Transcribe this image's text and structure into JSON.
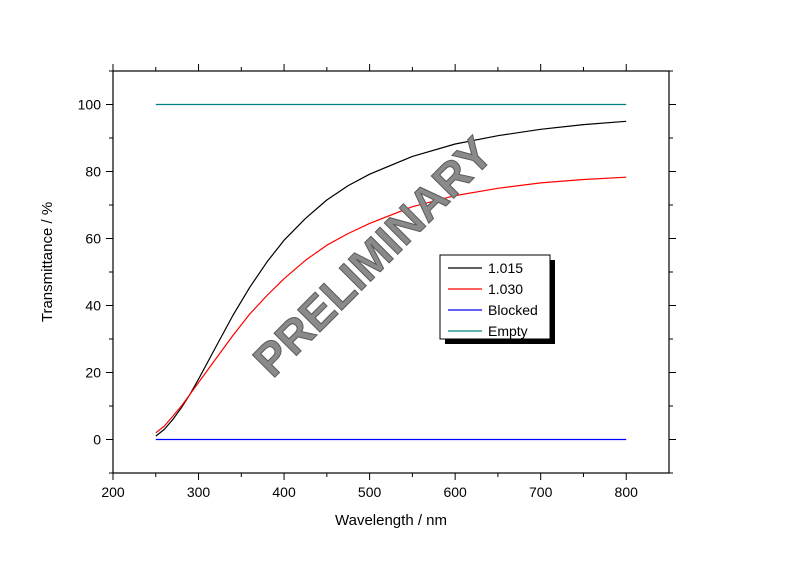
{
  "chart_data": {
    "type": "line",
    "title": "",
    "xlabel": "Wavelength / nm",
    "ylabel": "Transmittance / %",
    "xlim": [
      200,
      850
    ],
    "ylim": [
      -10,
      110
    ],
    "xticks": [
      200,
      300,
      400,
      500,
      600,
      700,
      800
    ],
    "yticks": [
      0,
      20,
      40,
      60,
      80,
      100
    ],
    "grid": false,
    "legend_position": "center-right",
    "watermark": "PRELIMINARY",
    "series": [
      {
        "name": "1.015",
        "color": "#000000",
        "x": [
          250,
          260,
          270,
          280,
          290,
          300,
          320,
          340,
          360,
          380,
          400,
          425,
          450,
          475,
          500,
          550,
          600,
          650,
          700,
          750,
          800
        ],
        "y": [
          1.0,
          3.0,
          6.0,
          9.5,
          13.5,
          18.0,
          27.5,
          37.0,
          45.5,
          53.0,
          59.5,
          66.0,
          71.5,
          75.8,
          79.2,
          84.5,
          88.2,
          90.7,
          92.6,
          94.0,
          95.0
        ]
      },
      {
        "name": "1.030",
        "color": "#ff0000",
        "x": [
          250,
          260,
          270,
          280,
          290,
          300,
          320,
          340,
          360,
          380,
          400,
          425,
          450,
          475,
          500,
          550,
          600,
          650,
          700,
          750,
          800
        ],
        "y": [
          2.0,
          4.0,
          7.0,
          10.0,
          13.5,
          17.0,
          24.0,
          31.0,
          37.5,
          43.0,
          48.0,
          53.5,
          58.0,
          61.5,
          64.5,
          69.5,
          72.8,
          75.0,
          76.6,
          77.6,
          78.3
        ]
      },
      {
        "name": "Blocked",
        "color": "#0000ff",
        "x": [
          250,
          300,
          400,
          500,
          600,
          700,
          800
        ],
        "y": [
          0,
          0,
          0,
          0,
          0,
          0,
          0
        ]
      },
      {
        "name": "Empty",
        "color": "#008080",
        "x": [
          250,
          300,
          400,
          500,
          600,
          700,
          800
        ],
        "y": [
          100,
          100,
          100,
          100,
          100,
          100,
          100
        ]
      }
    ]
  }
}
